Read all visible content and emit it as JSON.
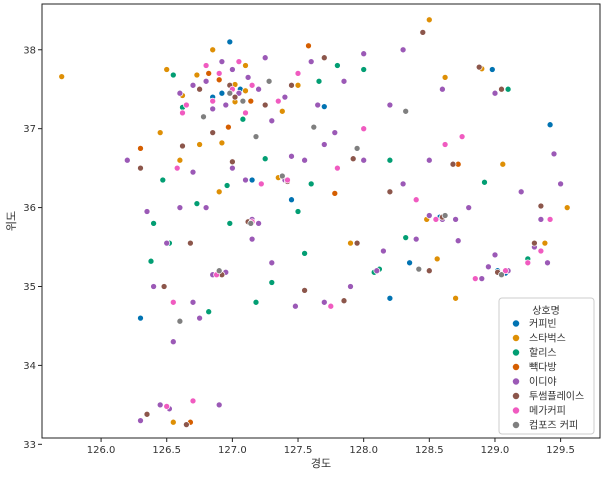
{
  "chart_data": {
    "type": "scatter",
    "title": "",
    "xlabel": "경도",
    "ylabel": "위도",
    "xlim": [
      125.55,
      129.8
    ],
    "ylim": [
      33.08,
      38.58
    ],
    "xticks": [
      "126.0",
      "126.5",
      "127.0",
      "127.5",
      "128.0",
      "128.5",
      "129.0",
      "129.5"
    ],
    "yticks": [
      "33",
      "34",
      "35",
      "36",
      "37",
      "38"
    ],
    "grid": false,
    "legend": {
      "title": "상호명",
      "placement": "lower-right",
      "entries": [
        "커피빈",
        "스타벅스",
        "할리스",
        "빽다방",
        "이디야",
        "투썸플레이스",
        "메가커피",
        "컴포즈 커피"
      ]
    },
    "series_colors": [
      "#0173b2",
      "#de8f05",
      "#029e73",
      "#d55e00",
      "#9b59b6",
      "#8c564b",
      "#f05bc0",
      "#7f7f7f"
    ],
    "series": [
      {
        "name": "커피빈",
        "points": [
          [
            126.98,
            38.1
          ],
          [
            127.7,
            37.28
          ],
          [
            127.06,
            37.5
          ],
          [
            126.92,
            37.45
          ],
          [
            128.98,
            37.75
          ],
          [
            129.42,
            37.05
          ],
          [
            128.35,
            35.3
          ],
          [
            128.2,
            34.85
          ],
          [
            126.3,
            34.6
          ],
          [
            129.08,
            35.17
          ],
          [
            129.02,
            35.2
          ],
          [
            127.15,
            36.35
          ],
          [
            127.45,
            36.1
          ],
          [
            128.58,
            35.88
          ],
          [
            126.85,
            37.4
          ]
        ]
      },
      {
        "name": "스타벅스",
        "points": [
          [
            125.7,
            37.66
          ],
          [
            126.5,
            37.75
          ],
          [
            126.85,
            38.0
          ],
          [
            127.1,
            37.8
          ],
          [
            126.62,
            37.42
          ],
          [
            127.38,
            37.22
          ],
          [
            127.02,
            37.56
          ],
          [
            127.5,
            37.55
          ],
          [
            128.5,
            38.38
          ],
          [
            128.62,
            37.65
          ],
          [
            128.9,
            37.76
          ],
          [
            129.06,
            36.55
          ],
          [
            129.55,
            36.0
          ],
          [
            128.48,
            35.85
          ],
          [
            129.38,
            35.55
          ],
          [
            128.56,
            35.35
          ],
          [
            128.7,
            34.85
          ],
          [
            127.35,
            36.38
          ],
          [
            126.6,
            36.6
          ],
          [
            126.75,
            36.8
          ],
          [
            126.92,
            36.82
          ],
          [
            127.1,
            37.48
          ],
          [
            126.73,
            37.68
          ],
          [
            127.02,
            37.34
          ],
          [
            126.45,
            36.95
          ],
          [
            126.55,
            33.28
          ],
          [
            126.9,
            36.2
          ],
          [
            127.9,
            35.55
          ]
        ]
      },
      {
        "name": "할리스",
        "points": [
          [
            126.4,
            35.8
          ],
          [
            126.38,
            35.32
          ],
          [
            126.62,
            37.27
          ],
          [
            126.55,
            37.68
          ],
          [
            127.8,
            37.8
          ],
          [
            128.0,
            37.75
          ],
          [
            127.5,
            35.95
          ],
          [
            128.2,
            36.6
          ],
          [
            126.82,
            34.68
          ],
          [
            127.18,
            34.8
          ],
          [
            126.73,
            36.05
          ],
          [
            126.98,
            35.8
          ],
          [
            127.55,
            35.42
          ],
          [
            128.08,
            35.18
          ],
          [
            128.32,
            35.62
          ],
          [
            128.92,
            36.32
          ],
          [
            129.1,
            37.5
          ],
          [
            127.25,
            36.62
          ],
          [
            127.08,
            37.12
          ],
          [
            126.47,
            36.35
          ],
          [
            126.96,
            36.28
          ],
          [
            127.6,
            36.3
          ],
          [
            127.3,
            35.05
          ],
          [
            128.12,
            35.22
          ],
          [
            127.66,
            37.6
          ],
          [
            126.52,
            35.55
          ],
          [
            129.25,
            35.35
          ]
        ]
      },
      {
        "name": "빽다방",
        "points": [
          [
            127.58,
            38.05
          ],
          [
            126.3,
            36.75
          ],
          [
            127.78,
            36.18
          ],
          [
            128.72,
            36.55
          ],
          [
            129.3,
            35.55
          ],
          [
            126.9,
            37.62
          ],
          [
            127.14,
            37.35
          ],
          [
            126.82,
            37.7
          ],
          [
            126.97,
            37.02
          ],
          [
            126.68,
            33.28
          ],
          [
            127.05,
            37.45
          ]
        ]
      },
      {
        "name": "이디야",
        "points": [
          [
            126.95,
            37.3
          ],
          [
            127.05,
            37.45
          ],
          [
            126.8,
            37.6
          ],
          [
            127.2,
            37.5
          ],
          [
            126.85,
            37.25
          ],
          [
            127.3,
            37.1
          ],
          [
            127.0,
            37.75
          ],
          [
            126.7,
            37.55
          ],
          [
            127.12,
            37.65
          ],
          [
            127.4,
            37.4
          ],
          [
            127.6,
            37.85
          ],
          [
            128.0,
            37.95
          ],
          [
            128.3,
            38.0
          ],
          [
            128.6,
            37.5
          ],
          [
            129.0,
            37.45
          ],
          [
            128.5,
            36.6
          ],
          [
            129.2,
            36.2
          ],
          [
            129.45,
            36.68
          ],
          [
            128.6,
            35.85
          ],
          [
            128.5,
            35.9
          ],
          [
            128.7,
            35.85
          ],
          [
            128.95,
            35.25
          ],
          [
            129.05,
            35.15
          ],
          [
            129.1,
            35.2
          ],
          [
            128.9,
            35.1
          ],
          [
            129.3,
            35.5
          ],
          [
            129.4,
            35.3
          ],
          [
            128.1,
            35.2
          ],
          [
            127.9,
            35.0
          ],
          [
            127.7,
            34.8
          ],
          [
            127.48,
            34.75
          ],
          [
            127.2,
            35.8
          ],
          [
            127.15,
            35.85
          ],
          [
            126.95,
            35.18
          ],
          [
            126.85,
            35.15
          ],
          [
            126.5,
            35.55
          ],
          [
            126.35,
            35.95
          ],
          [
            126.6,
            36.0
          ],
          [
            126.7,
            36.45
          ],
          [
            127.0,
            36.5
          ],
          [
            127.1,
            36.35
          ],
          [
            127.4,
            36.35
          ],
          [
            127.45,
            36.65
          ],
          [
            127.7,
            36.8
          ],
          [
            128.0,
            36.6
          ],
          [
            128.3,
            36.3
          ],
          [
            128.4,
            35.6
          ],
          [
            128.8,
            36.0
          ],
          [
            129.35,
            35.85
          ],
          [
            126.52,
            33.45
          ],
          [
            126.45,
            33.5
          ],
          [
            126.9,
            33.5
          ],
          [
            126.3,
            33.3
          ],
          [
            126.7,
            34.8
          ],
          [
            126.55,
            34.3
          ],
          [
            127.25,
            37.9
          ],
          [
            127.65,
            37.3
          ],
          [
            127.85,
            37.6
          ],
          [
            126.6,
            37.45
          ],
          [
            126.92,
            37.85
          ],
          [
            127.55,
            36.6
          ],
          [
            128.2,
            37.3
          ],
          [
            126.8,
            36.0
          ],
          [
            126.4,
            35.0
          ],
          [
            127.15,
            35.6
          ],
          [
            127.3,
            35.3
          ],
          [
            129.0,
            35.4
          ],
          [
            128.72,
            35.58
          ],
          [
            127.78,
            36.95
          ],
          [
            128.15,
            35.45
          ],
          [
            129.5,
            36.3
          ],
          [
            126.75,
            34.6
          ],
          [
            126.2,
            36.6
          ]
        ]
      },
      {
        "name": "투썸플레이스",
        "points": [
          [
            126.98,
            37.55
          ],
          [
            127.02,
            37.4
          ],
          [
            126.75,
            37.5
          ],
          [
            127.25,
            37.3
          ],
          [
            127.45,
            37.55
          ],
          [
            127.7,
            37.9
          ],
          [
            128.45,
            38.22
          ],
          [
            128.88,
            37.78
          ],
          [
            129.05,
            37.5
          ],
          [
            128.68,
            36.55
          ],
          [
            129.35,
            36.02
          ],
          [
            128.6,
            35.88
          ],
          [
            129.02,
            35.18
          ],
          [
            129.3,
            35.55
          ],
          [
            128.5,
            35.2
          ],
          [
            127.95,
            35.55
          ],
          [
            127.55,
            34.95
          ],
          [
            127.85,
            34.82
          ],
          [
            127.12,
            35.82
          ],
          [
            126.92,
            35.15
          ],
          [
            126.68,
            35.55
          ],
          [
            126.3,
            36.5
          ],
          [
            126.62,
            36.78
          ],
          [
            127.0,
            36.58
          ],
          [
            127.42,
            36.33
          ],
          [
            127.92,
            36.62
          ],
          [
            128.2,
            36.2
          ],
          [
            126.35,
            33.38
          ],
          [
            126.65,
            33.25
          ],
          [
            126.48,
            35.0
          ],
          [
            126.85,
            36.95
          ]
        ]
      },
      {
        "name": "메가커피",
        "points": [
          [
            127.0,
            37.5
          ],
          [
            126.85,
            37.35
          ],
          [
            127.15,
            37.55
          ],
          [
            126.9,
            37.7
          ],
          [
            127.35,
            37.35
          ],
          [
            126.65,
            37.3
          ],
          [
            127.5,
            37.7
          ],
          [
            127.1,
            37.2
          ],
          [
            127.05,
            37.85
          ],
          [
            126.8,
            37.8
          ],
          [
            128.55,
            35.85
          ],
          [
            128.4,
            36.1
          ],
          [
            129.08,
            35.2
          ],
          [
            129.25,
            35.3
          ],
          [
            128.85,
            35.1
          ],
          [
            129.35,
            35.45
          ],
          [
            127.15,
            35.82
          ],
          [
            126.88,
            35.15
          ],
          [
            127.42,
            36.35
          ],
          [
            127.8,
            36.5
          ],
          [
            128.0,
            37.0
          ],
          [
            126.62,
            37.2
          ],
          [
            126.7,
            33.55
          ],
          [
            126.5,
            33.48
          ],
          [
            126.55,
            34.8
          ],
          [
            127.22,
            36.3
          ],
          [
            127.75,
            34.75
          ],
          [
            128.62,
            36.8
          ],
          [
            129.42,
            35.85
          ],
          [
            128.75,
            36.9
          ],
          [
            126.58,
            36.5
          ]
        ]
      },
      {
        "name": "컴포즈 커피",
        "points": [
          [
            126.98,
            37.45
          ],
          [
            127.08,
            37.35
          ],
          [
            127.28,
            37.6
          ],
          [
            126.78,
            37.15
          ],
          [
            127.18,
            36.9
          ],
          [
            127.95,
            36.75
          ],
          [
            128.62,
            35.9
          ],
          [
            129.05,
            35.15
          ],
          [
            128.42,
            35.22
          ],
          [
            126.6,
            34.56
          ],
          [
            126.9,
            35.2
          ],
          [
            127.14,
            35.8
          ],
          [
            127.38,
            36.4
          ],
          [
            127.62,
            37.02
          ],
          [
            128.32,
            37.22
          ]
        ]
      }
    ]
  }
}
